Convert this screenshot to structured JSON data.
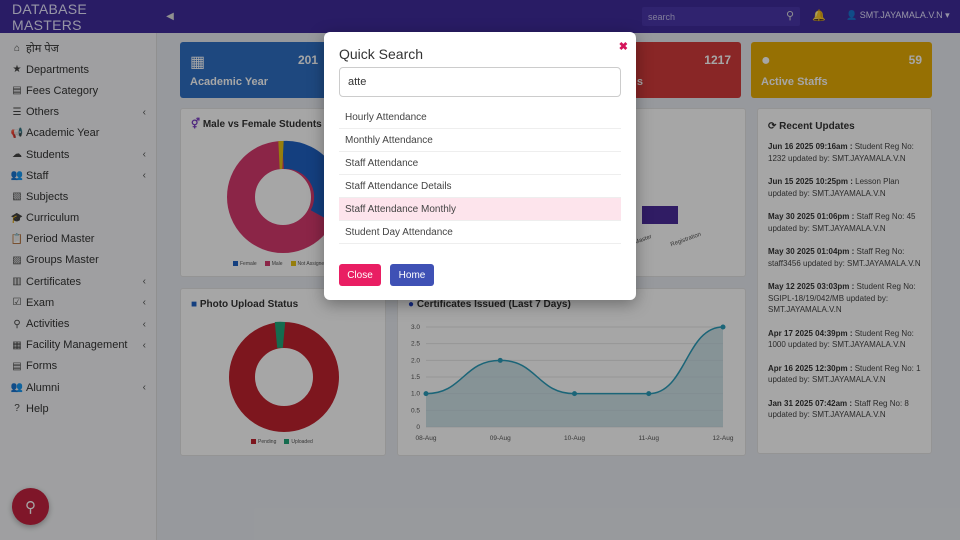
{
  "topbar": {
    "brand": "DATABASE MASTERS",
    "search_placeholder": "search",
    "user": "SMT.JAYAMALA.V.N ▾"
  },
  "sidebar": {
    "items": [
      {
        "label": "होम पेज",
        "icon": "home-icon",
        "chev": false
      },
      {
        "label": "Departments",
        "icon": "star-icon",
        "chev": false
      },
      {
        "label": "Fees Category",
        "icon": "file-icon",
        "chev": false
      },
      {
        "label": "Others",
        "icon": "list-icon",
        "chev": true
      },
      {
        "label": "Academic Year",
        "icon": "megaphone-icon",
        "chev": false
      },
      {
        "label": "Students",
        "icon": "cloud-icon",
        "chev": true
      },
      {
        "label": "Staff",
        "icon": "users-icon",
        "chev": true
      },
      {
        "label": "Subjects",
        "icon": "document-icon",
        "chev": false
      },
      {
        "label": "Curriculum",
        "icon": "graduation-icon",
        "chev": false
      },
      {
        "label": "Period Master",
        "icon": "clipboard-icon",
        "chev": false
      },
      {
        "label": "Groups Master",
        "icon": "folder-icon",
        "chev": false
      },
      {
        "label": "Certificates",
        "icon": "certificate-icon",
        "chev": true
      },
      {
        "label": "Exam",
        "icon": "check-icon",
        "chev": true
      },
      {
        "label": "Activities",
        "icon": "person-icon",
        "chev": true
      },
      {
        "label": "Facility Management",
        "icon": "building-icon",
        "chev": true
      },
      {
        "label": "Forms",
        "icon": "form-icon",
        "chev": false
      },
      {
        "label": "Alumni",
        "icon": "group-icon",
        "chev": true
      },
      {
        "label": "Help",
        "icon": "help-icon",
        "chev": false
      }
    ]
  },
  "stats": {
    "academic_year": {
      "label": "Academic Year",
      "value": "201",
      "color": "#2f6fc4"
    },
    "students": {
      "label": "s",
      "value": "1217",
      "color": "#d33b3b"
    },
    "staffs": {
      "label": "Active Staffs",
      "value": "59",
      "color": "#e6ad06"
    }
  },
  "panels": {
    "gender": {
      "title": "Male vs Female Students",
      "legend": [
        "Female",
        "Male",
        "Not Assigned"
      ]
    },
    "photo": {
      "title": "Photo Upload Status",
      "legend": [
        "Pending",
        "Uploaded"
      ]
    },
    "certs": {
      "title": "Certificates Issued (Last 7 Days)"
    },
    "updates": {
      "title": "Recent Updates",
      "items": [
        {
          "time": "Jun 16 2025 09:16am :",
          "text": " Student Reg No: 1232 updated by: SMT.JAYAMALA.V.N"
        },
        {
          "time": "Jun 15 2025 10:25pm :",
          "text": " Lesson Plan updated by: SMT.JAYAMALA.V.N"
        },
        {
          "time": "May 30 2025 01:06pm :",
          "text": " Staff Reg No: 45 updated by: SMT.JAYAMALA.V.N"
        },
        {
          "time": "May 30 2025 01:04pm :",
          "text": " Staff Reg No: staff3456 updated by: SMT.JAYAMALA.V.N"
        },
        {
          "time": "May 12 2025 03:03pm :",
          "text": " Student Reg No: SGIPL-18/19/042/MB updated by: SMT.JAYAMALA.V.N"
        },
        {
          "time": "Apr 17 2025 04:39pm :",
          "text": " Student Reg No: 1000 updated by: SMT.JAYAMALA.V.N"
        },
        {
          "time": "Apr 16 2025 12:30pm :",
          "text": " Student Reg No: 1 updated by: SMT.JAYAMALA.V.N"
        },
        {
          "time": "Jan 31 2025 07:42am :",
          "text": " Staff Reg No: 8 updated by: SMT.JAYAMALA.V.N"
        }
      ]
    },
    "bars_labels": [
      "Master",
      "Registration"
    ]
  },
  "chart_data": {
    "type": "line",
    "title": "Certificates Issued (Last 7 Days)",
    "x": [
      "08-Aug",
      "09-Aug",
      "10-Aug",
      "11-Aug",
      "12-Aug"
    ],
    "values": [
      1.0,
      2.0,
      1.0,
      1.0,
      3.0
    ],
    "ylim": [
      0,
      3.0
    ],
    "yticks": [
      "0",
      "0.5",
      "1.0",
      "1.5",
      "2.0",
      "2.5",
      "3.0"
    ]
  },
  "modal": {
    "title": "Quick Search",
    "input_value": "atte",
    "results": [
      "Hourly Attendance",
      "Monthly Attendance",
      "Staff Attendance",
      "Staff Attendance Details",
      "Staff Attendance Monthly",
      "Student Day Attendance"
    ],
    "active_index": 4,
    "close_label": "Close",
    "home_label": "Home",
    "close_color": "#e91e63",
    "home_color": "#3f51b5"
  }
}
